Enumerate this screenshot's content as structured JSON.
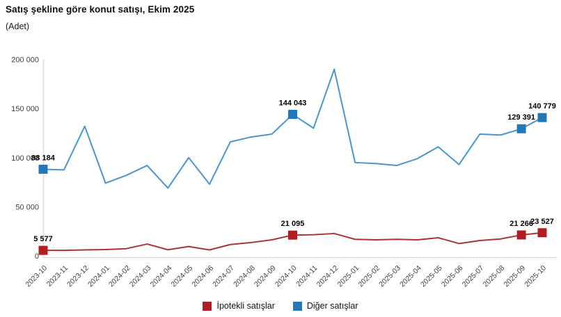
{
  "header": {
    "title": "Satış şekline göre konut satışı, Ekim 2025",
    "subtitle": "(Adet)"
  },
  "chart_data": {
    "type": "line",
    "title": "Satış şekline göre konut satışı, Ekim 2025",
    "ylabel": "Adet",
    "ylim": [
      0,
      200000
    ],
    "ytick_step": 50000,
    "grid": false,
    "legend_position": "bottom",
    "number_format": "space-thousands",
    "categories": [
      "2023-10",
      "2023-11",
      "2023-12",
      "2024-01",
      "2024-02",
      "2024-03",
      "2024-04",
      "2024-05",
      "2024-06",
      "2024-07",
      "2024-08",
      "2024-09",
      "2024-10",
      "2024-11",
      "2024-12",
      "2025-01",
      "2025-02",
      "2025-03",
      "2025-04",
      "2025-05",
      "2025-06",
      "2025-07",
      "2025-08",
      "2025-09",
      "2025-10"
    ],
    "series": [
      {
        "name": "İpotekli satışlar",
        "line_color": "#a93438",
        "marker_color": "#b01e24",
        "values": [
          5577,
          5600,
          6000,
          6400,
          7300,
          12000,
          6200,
          9500,
          6000,
          11500,
          13500,
          16300,
          21095,
          21500,
          22700,
          16800,
          16300,
          16800,
          16300,
          18400,
          12500,
          15600,
          17200,
          21266,
          23527
        ],
        "labeled_indices": [
          0,
          12,
          23,
          24
        ],
        "labeled_values": [
          5577,
          21095,
          21266,
          23527
        ]
      },
      {
        "name": "Diğer satışlar",
        "line_color": "#4b95c9",
        "marker_color": "#2277b9",
        "values": [
          88184,
          87500,
          132000,
          74000,
          82000,
          92000,
          69000,
          100000,
          73000,
          116000,
          121000,
          124000,
          144043,
          130000,
          190000,
          95000,
          94000,
          92000,
          99000,
          111000,
          93000,
          124000,
          123000,
          129391,
          140779
        ],
        "labeled_indices": [
          0,
          12,
          23,
          24
        ],
        "labeled_values": [
          88184,
          144043,
          129391,
          140779
        ]
      }
    ],
    "axis_color": "#dcdcdc",
    "tick_text_color": "#404040",
    "data_label_color": "#000000"
  },
  "legend": {
    "items": [
      {
        "label": "İpotekli satışlar",
        "color": "#b01e24"
      },
      {
        "label": "Diğer satışlar",
        "color": "#2277b9"
      }
    ]
  }
}
